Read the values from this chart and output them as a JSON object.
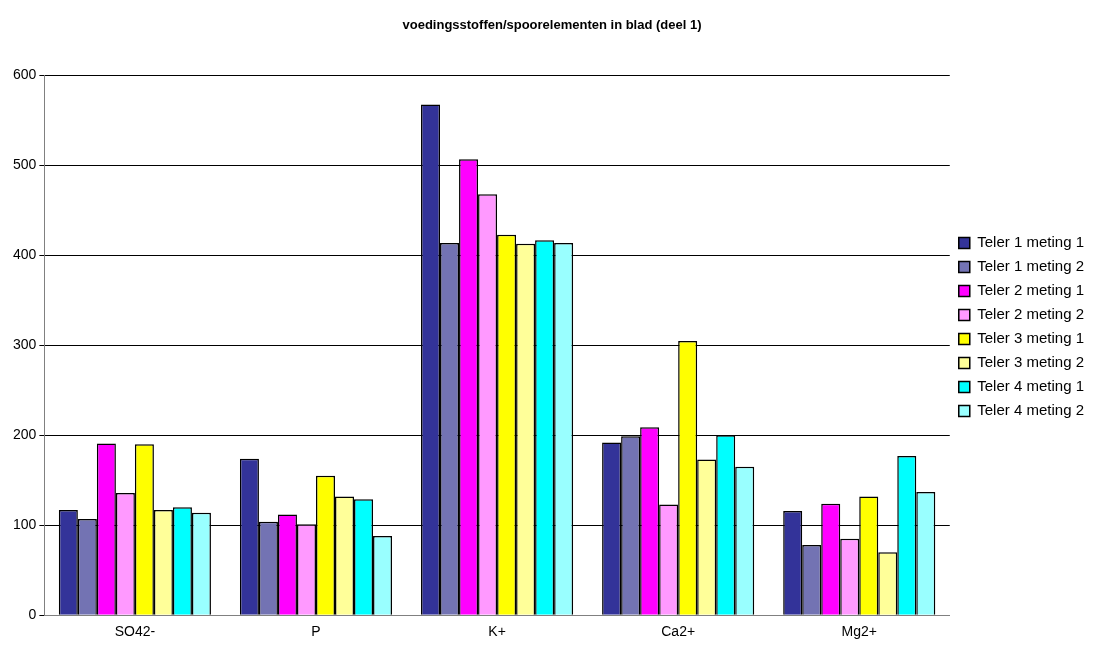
{
  "chart_data": {
    "type": "bar",
    "title": "voedingsstoffen/spoorelementen in blad (deel 1)",
    "categories": [
      "SO42-",
      "P",
      "K+",
      "Ca2+",
      "Mg2+"
    ],
    "series": [
      {
        "name": "Teler 1 meting 1",
        "color": "#333399",
        "values": [
          117,
          174,
          568,
          192,
          116
        ]
      },
      {
        "name": "Teler 1 meting 2",
        "color": "#7373b3",
        "values": [
          107,
          104,
          414,
          199,
          78
        ]
      },
      {
        "name": "Teler 2 meting 1",
        "color": "#ff00ff",
        "values": [
          191,
          112,
          507,
          209,
          124
        ]
      },
      {
        "name": "Teler 2 meting 2",
        "color": "#ff99ff",
        "values": [
          136,
          101,
          468,
          123,
          85
        ]
      },
      {
        "name": "Teler 3 meting 1",
        "color": "#ffff00",
        "values": [
          190,
          155,
          423,
          305,
          132
        ]
      },
      {
        "name": "Teler 3 meting 2",
        "color": "#ffff99",
        "values": [
          117,
          132,
          413,
          173,
          70
        ]
      },
      {
        "name": "Teler 4 meting 1",
        "color": "#00ffff",
        "values": [
          120,
          129,
          417,
          200,
          177
        ]
      },
      {
        "name": "Teler 4 meting 2",
        "color": "#99ffff",
        "values": [
          114,
          88,
          414,
          165,
          137
        ]
      }
    ],
    "ylim": [
      0,
      600
    ],
    "yticks": [
      0,
      100,
      200,
      300,
      400,
      500,
      600
    ],
    "grid": "y",
    "legend": "right"
  }
}
